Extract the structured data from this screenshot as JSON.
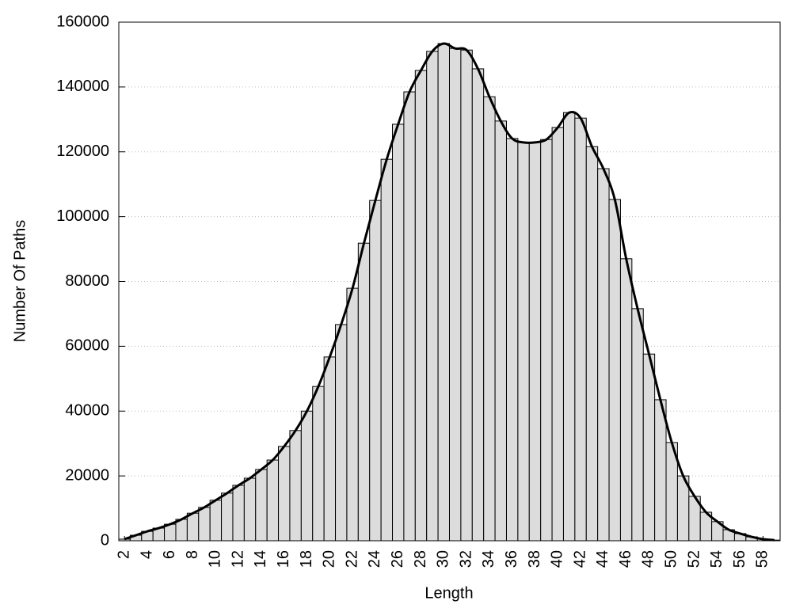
{
  "chart_data": {
    "type": "bar",
    "xlabel": "Length",
    "ylabel": "Number Of Paths",
    "x": [
      2,
      3,
      4,
      5,
      6,
      7,
      8,
      9,
      10,
      11,
      12,
      13,
      14,
      15,
      16,
      17,
      18,
      19,
      20,
      21,
      22,
      23,
      24,
      25,
      26,
      27,
      28,
      29,
      30,
      31,
      32,
      33,
      34,
      35,
      36,
      37,
      38,
      39,
      40,
      41,
      42,
      43,
      44,
      45,
      46,
      47,
      48,
      49,
      50,
      51,
      52,
      53,
      54,
      55,
      56,
      57,
      58,
      59
    ],
    "values": [
      500,
      1700,
      2900,
      3900,
      5100,
      6600,
      8500,
      10300,
      12500,
      14700,
      17100,
      19300,
      22000,
      24900,
      29100,
      34000,
      40000,
      47600,
      56700,
      66700,
      77900,
      91800,
      105000,
      117700,
      128500,
      138500,
      145100,
      151000,
      153400,
      151900,
      151400,
      145600,
      137000,
      129500,
      124100,
      122900,
      122900,
      123800,
      127500,
      132100,
      130400,
      121600,
      114800,
      105300,
      87000,
      71600,
      57600,
      43500,
      30300,
      20000,
      13700,
      8800,
      5900,
      3400,
      2200,
      1200,
      500,
      200
    ],
    "color": "#dcdcdc",
    "line_color": "#000000",
    "smooth_line": true,
    "xlim": [
      1.5,
      59.5
    ],
    "xticks": [
      2,
      4,
      6,
      8,
      10,
      12,
      14,
      16,
      18,
      20,
      22,
      24,
      26,
      28,
      30,
      32,
      34,
      36,
      38,
      40,
      42,
      44,
      46,
      48,
      50,
      52,
      54,
      56,
      58
    ],
    "ylim": [
      0,
      160000
    ],
    "yticks": [
      0,
      20000,
      40000,
      60000,
      80000,
      100000,
      120000,
      140000,
      160000
    ],
    "grid": true
  }
}
